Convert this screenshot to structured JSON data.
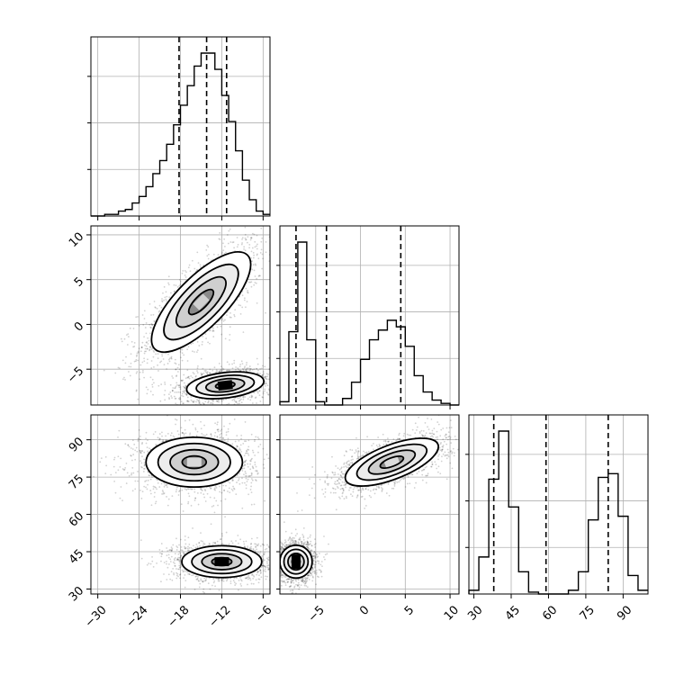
{
  "chart_data": {
    "type": "corner",
    "parameters": [
      {
        "ticks": [
          -30,
          -24,
          -18,
          -12,
          -6
        ],
        "tick_labels": [
          "−30",
          "−24",
          "−18",
          "−12",
          "−6"
        ],
        "range": [
          -31,
          -5
        ],
        "quantiles": [
          -18.2,
          -14.2,
          -11.3
        ],
        "hist": {
          "edges": [
            -31,
            -30,
            -29,
            -28,
            -27,
            -26,
            -25,
            -24,
            -23,
            -22,
            -21,
            -20,
            -19,
            -18,
            -17,
            -16,
            -15,
            -14,
            -13,
            -12,
            -11,
            -10,
            -9,
            -8,
            -7,
            -6,
            -5
          ],
          "counts": [
            0,
            0,
            0.01,
            0.01,
            0.03,
            0.04,
            0.08,
            0.12,
            0.18,
            0.26,
            0.34,
            0.44,
            0.56,
            0.68,
            0.8,
            0.92,
            1.0,
            1.0,
            0.9,
            0.74,
            0.58,
            0.4,
            0.22,
            0.1,
            0.03,
            0.01
          ]
        }
      },
      {
        "ticks": [
          -5,
          0,
          5,
          10
        ],
        "tick_labels": [
          "−5",
          "0",
          "5",
          "10"
        ],
        "range": [
          -9,
          11
        ],
        "quantiles": [
          -7.2,
          -3.8,
          4.5
        ],
        "hist": {
          "edges": [
            -9,
            -8,
            -7,
            -6,
            -5,
            -4,
            -3,
            -2,
            -1,
            0,
            1,
            2,
            3,
            4,
            5,
            6,
            7,
            8,
            9,
            10,
            11
          ],
          "counts": [
            0.02,
            0.45,
            1.0,
            0.4,
            0.02,
            0,
            0,
            0.04,
            0.14,
            0.28,
            0.4,
            0.46,
            0.52,
            0.48,
            0.36,
            0.18,
            0.08,
            0.03,
            0.01,
            0
          ]
        }
      },
      {
        "ticks": [
          30,
          45,
          60,
          75,
          90
        ],
        "tick_labels": [
          "30",
          "45",
          "60",
          "75",
          "90"
        ],
        "range": [
          28,
          100
        ],
        "quantiles": [
          38,
          59,
          84
        ],
        "hist": {
          "edges": [
            28,
            32,
            36,
            40,
            44,
            48,
            52,
            56,
            60,
            64,
            68,
            72,
            76,
            80,
            84,
            88,
            92,
            96,
            100
          ],
          "counts": [
            0.02,
            0.2,
            0.62,
            0.88,
            0.47,
            0.12,
            0.01,
            0,
            0,
            0,
            0.02,
            0.12,
            0.4,
            0.63,
            0.65,
            0.42,
            0.1,
            0.02
          ]
        }
      }
    ],
    "density_panels": [
      {
        "row": 1,
        "col": 0,
        "modes": [
          {
            "cx": -15,
            "cy": 2.5,
            "sx": 3.6,
            "sy": 2.8,
            "rho": 0.75,
            "w": 1.0,
            "peak_color": "#d0d0d0"
          },
          {
            "cx": -11.5,
            "cy": -6.8,
            "sx": 2.8,
            "sy": 0.75,
            "rho": 0.3,
            "w": 1.0,
            "peak_color": "#000000"
          }
        ]
      },
      {
        "row": 2,
        "col": 0,
        "modes": [
          {
            "cx": -16,
            "cy": 81,
            "sx": 3.5,
            "sy": 5.0,
            "rho": 0.0,
            "w": 1.0,
            "peak_color": "#d8d8d8"
          },
          {
            "cx": -12,
            "cy": 41,
            "sx": 2.9,
            "sy": 3.2,
            "rho": 0.0,
            "w": 1.0,
            "peak_color": "#000000"
          }
        ]
      },
      {
        "row": 2,
        "col": 1,
        "modes": [
          {
            "cx": 3.5,
            "cy": 81,
            "sx": 2.6,
            "sy": 4.8,
            "rho": 0.65,
            "w": 1.0,
            "peak_color": "#dddddd"
          },
          {
            "cx": -7.2,
            "cy": 41,
            "sx": 0.9,
            "sy": 3.3,
            "rho": 0.0,
            "w": 1.0,
            "peak_color": "#000000"
          }
        ]
      }
    ],
    "colors": {
      "line": "#000000",
      "grid": "#b0b0b0",
      "scatter": "#000000"
    }
  }
}
